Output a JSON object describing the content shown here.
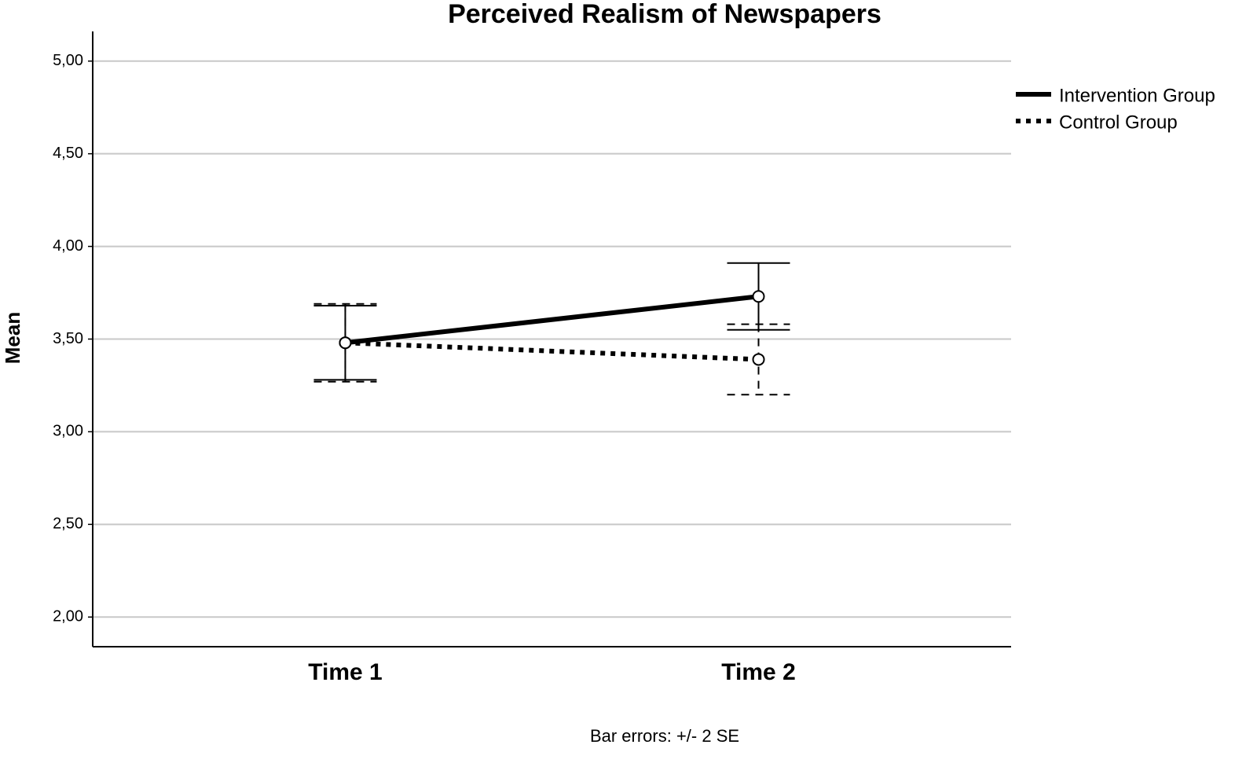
{
  "chart_data": {
    "type": "line",
    "title": "Perceived Realism of Newspapers",
    "ylabel": "Mean",
    "note": "Bar errors: +/- 2 SE",
    "categories": [
      "Time 1",
      "Time 2"
    ],
    "series": [
      {
        "name": "Intervention Group",
        "color": "#000000",
        "dash": "solid",
        "values": [
          3.48,
          3.73
        ],
        "errors": [
          0.2,
          0.18
        ]
      },
      {
        "name": "Control Group",
        "color": "#000000",
        "dash": "dotted",
        "values": [
          3.48,
          3.39
        ],
        "errors": [
          0.21,
          0.19
        ]
      }
    ],
    "ylim": [
      1.84,
      5.16
    ],
    "yticks": [
      {
        "value": 2,
        "label": "2,00"
      },
      {
        "value": 2.5,
        "label": "2,50"
      },
      {
        "value": 3,
        "label": "3,00"
      },
      {
        "value": 3.5,
        "label": "3,50"
      },
      {
        "value": 4,
        "label": "4,00"
      },
      {
        "value": 4.5,
        "label": "4,50"
      },
      {
        "value": 5,
        "label": "5,00"
      }
    ],
    "grid": true,
    "legend": "top-right"
  }
}
